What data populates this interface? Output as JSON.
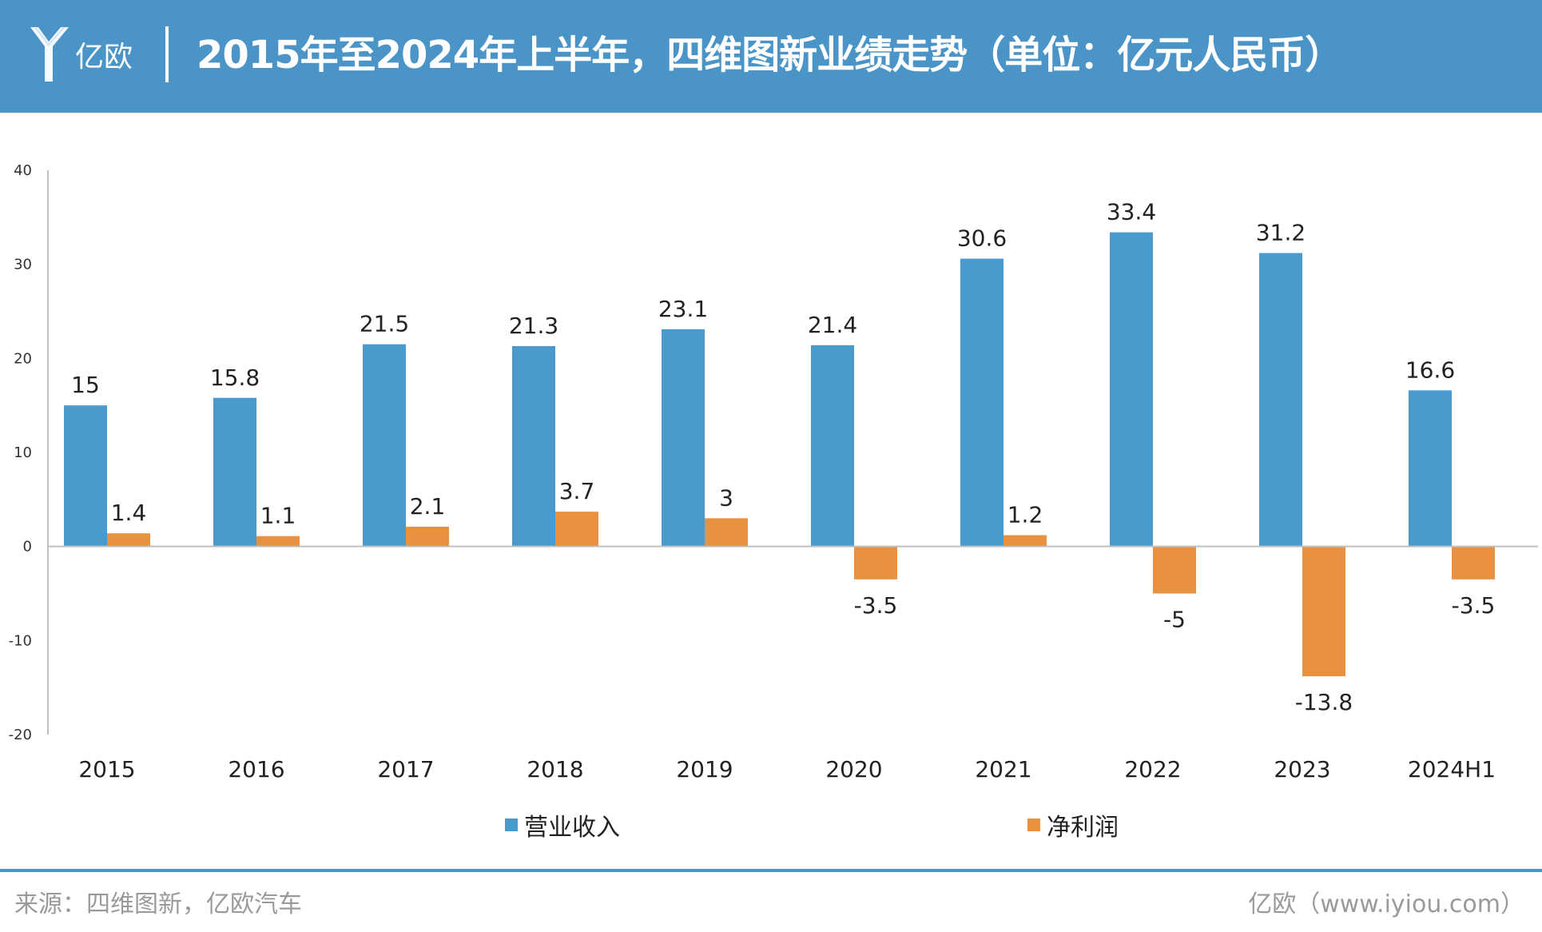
{
  "header": {
    "logo_text": "亿欧",
    "title": "2015年至2024年上半年，四维图新业绩走势（单位：亿元人民币）"
  },
  "chart_data": {
    "type": "bar",
    "categories": [
      "2015",
      "2016",
      "2017",
      "2018",
      "2019",
      "2020",
      "2021",
      "2022",
      "2023",
      "2024H1"
    ],
    "series": [
      {
        "name": "营业收入",
        "color": "#4a9acd",
        "values": [
          15,
          15.8,
          21.5,
          21.3,
          23.1,
          21.4,
          30.6,
          33.4,
          31.2,
          16.6
        ],
        "labels": [
          "15",
          "15.8",
          "21.5",
          "21.3",
          "23.1",
          "21.4",
          "30.6",
          "33.4",
          "31.2",
          "16.6"
        ]
      },
      {
        "name": "净利润",
        "color": "#e8913f",
        "values": [
          1.4,
          1.1,
          2.1,
          3.7,
          3,
          -3.5,
          1.2,
          -5,
          -13.8,
          -3.5
        ],
        "labels": [
          "1.4",
          "1.1",
          "2.1",
          "3.7",
          "3",
          "-3.5",
          "1.2",
          "-5",
          "-13.8",
          "-3.5"
        ]
      }
    ],
    "ylim": [
      -20,
      40
    ],
    "yticks": [
      40,
      30,
      20,
      10,
      0,
      -10,
      -20
    ],
    "legend_position": "bottom"
  },
  "footer": {
    "source": "来源：四维图新，亿欧汽车",
    "credit": "亿欧（www.iyiou.com）"
  }
}
